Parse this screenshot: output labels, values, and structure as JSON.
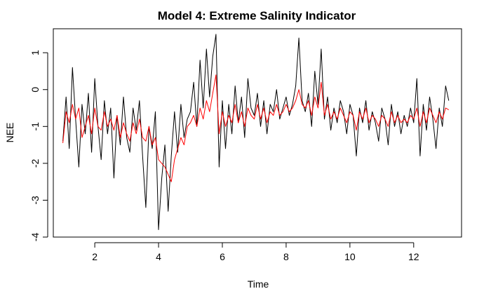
{
  "chart_data": {
    "type": "line",
    "title": "Model 4: Extreme Salinity Indicator",
    "xlabel": "Time",
    "ylabel": "NEE",
    "xlim": [
      0.7,
      13.5
    ],
    "ylim": [
      -4.0,
      1.65
    ],
    "xticks": [
      2,
      4,
      6,
      8,
      10,
      12
    ],
    "yticks": [
      -4,
      -3,
      -2,
      -1,
      0,
      1
    ],
    "grid": false,
    "legend": "none",
    "series": [
      {
        "color": "#000000",
        "x": [
          1.0,
          1.1,
          1.2,
          1.3,
          1.4,
          1.5,
          1.6,
          1.7,
          1.8,
          1.9,
          2.0,
          2.1,
          2.2,
          2.3,
          2.4,
          2.5,
          2.6,
          2.7,
          2.8,
          2.9,
          3.0,
          3.1,
          3.2,
          3.3,
          3.4,
          3.5,
          3.6,
          3.7,
          3.8,
          3.9,
          4.0,
          4.1,
          4.2,
          4.3,
          4.4,
          4.5,
          4.6,
          4.7,
          4.8,
          4.9,
          5.0,
          5.1,
          5.2,
          5.3,
          5.4,
          5.5,
          5.6,
          5.7,
          5.8,
          5.9,
          6.0,
          6.1,
          6.2,
          6.3,
          6.4,
          6.5,
          6.6,
          6.7,
          6.8,
          6.9,
          7.0,
          7.1,
          7.2,
          7.3,
          7.4,
          7.5,
          7.6,
          7.7,
          7.8,
          7.9,
          8.0,
          8.1,
          8.2,
          8.3,
          8.4,
          8.5,
          8.6,
          8.7,
          8.8,
          8.9,
          9.0,
          9.1,
          9.2,
          9.3,
          9.4,
          9.5,
          9.6,
          9.7,
          9.8,
          9.9,
          10.0,
          10.1,
          10.2,
          10.3,
          10.4,
          10.5,
          10.6,
          10.7,
          10.8,
          10.9,
          11.0,
          11.1,
          11.2,
          11.3,
          11.4,
          11.5,
          11.6,
          11.7,
          11.8,
          11.9,
          12.0,
          12.1,
          12.2,
          12.3,
          12.4,
          12.5,
          12.6,
          12.7,
          12.8,
          12.9,
          13.0,
          13.1
        ],
        "values": [
          -1.4,
          -0.2,
          -1.6,
          0.6,
          -0.8,
          -2.1,
          -0.4,
          -1.2,
          -0.1,
          -1.7,
          0.3,
          -1.0,
          -1.9,
          -0.3,
          -1.2,
          -0.5,
          -2.4,
          -0.7,
          -1.5,
          -0.2,
          -1.3,
          -1.7,
          -0.5,
          -1.1,
          -0.3,
          -1.8,
          -3.2,
          -1.0,
          -1.6,
          -0.6,
          -3.8,
          -2.4,
          -1.5,
          -3.3,
          -1.8,
          -0.6,
          -1.7,
          -0.4,
          -1.3,
          -0.8,
          -0.6,
          0.2,
          -1.0,
          0.8,
          -0.5,
          1.1,
          -0.2,
          0.9,
          1.5,
          -2.1,
          -0.3,
          -1.6,
          -0.4,
          -1.2,
          0.1,
          -0.9,
          -0.2,
          -1.3,
          0.3,
          -0.5,
          -0.7,
          -0.1,
          -1.0,
          -0.3,
          -1.2,
          -0.4,
          -0.6,
          0.0,
          -0.8,
          -0.5,
          -0.2,
          -0.7,
          -0.4,
          0.1,
          1.4,
          -0.3,
          -0.6,
          -0.1,
          -1.0,
          0.5,
          -0.4,
          1.1,
          -0.8,
          -0.2,
          -1.1,
          -0.5,
          -0.9,
          -0.3,
          -0.6,
          -1.2,
          -0.4,
          -0.7,
          -1.8,
          -0.5,
          -0.9,
          -0.3,
          -1.1,
          -0.6,
          -0.9,
          -1.4,
          -0.5,
          -0.8,
          -1.5,
          -0.4,
          -1.0,
          -0.6,
          -1.2,
          -0.7,
          -1.0,
          -0.5,
          -0.9,
          0.3,
          -1.8,
          -0.4,
          -1.1,
          -0.2,
          -0.8,
          -1.6,
          -0.5,
          -1.0,
          0.1,
          -0.3
        ]
      },
      {
        "color": "#ff0000",
        "x": [
          1.0,
          1.1,
          1.2,
          1.3,
          1.4,
          1.5,
          1.6,
          1.7,
          1.8,
          1.9,
          2.0,
          2.1,
          2.2,
          2.3,
          2.4,
          2.5,
          2.6,
          2.7,
          2.8,
          2.9,
          3.0,
          3.1,
          3.2,
          3.3,
          3.4,
          3.5,
          3.6,
          3.7,
          3.8,
          3.9,
          4.0,
          4.1,
          4.2,
          4.3,
          4.4,
          4.5,
          4.6,
          4.7,
          4.8,
          4.9,
          5.0,
          5.1,
          5.2,
          5.3,
          5.4,
          5.5,
          5.6,
          5.7,
          5.8,
          5.9,
          6.0,
          6.1,
          6.2,
          6.3,
          6.4,
          6.5,
          6.6,
          6.7,
          6.8,
          6.9,
          7.0,
          7.1,
          7.2,
          7.3,
          7.4,
          7.5,
          7.6,
          7.7,
          7.8,
          7.9,
          8.0,
          8.1,
          8.2,
          8.3,
          8.4,
          8.5,
          8.6,
          8.7,
          8.8,
          8.9,
          9.0,
          9.1,
          9.2,
          9.3,
          9.4,
          9.5,
          9.6,
          9.7,
          9.8,
          9.9,
          10.0,
          10.1,
          10.2,
          10.3,
          10.4,
          10.5,
          10.6,
          10.7,
          10.8,
          10.9,
          11.0,
          11.1,
          11.2,
          11.3,
          11.4,
          11.5,
          11.6,
          11.7,
          11.8,
          11.9,
          12.0,
          12.1,
          12.2,
          12.3,
          12.4,
          12.5,
          12.6,
          12.7,
          12.8,
          12.9,
          13.0,
          13.1
        ],
        "values": [
          -1.45,
          -0.6,
          -0.9,
          -0.4,
          -0.8,
          -0.5,
          -1.3,
          -1.0,
          -0.7,
          -1.2,
          -0.5,
          -1.0,
          -1.1,
          -0.6,
          -1.0,
          -0.8,
          -1.1,
          -0.7,
          -1.3,
          -0.9,
          -1.2,
          -1.4,
          -0.9,
          -1.2,
          -0.8,
          -1.3,
          -1.4,
          -1.0,
          -1.5,
          -1.3,
          -1.9,
          -2.0,
          -2.1,
          -2.3,
          -2.5,
          -1.9,
          -1.6,
          -1.3,
          -1.5,
          -1.0,
          -0.9,
          -0.7,
          -1.0,
          -0.5,
          -0.8,
          -0.3,
          -0.6,
          -0.1,
          0.4,
          -1.2,
          -0.6,
          -1.0,
          -0.7,
          -0.9,
          -0.4,
          -0.9,
          -0.6,
          -1.0,
          -0.5,
          -0.7,
          -0.8,
          -0.4,
          -0.8,
          -0.5,
          -0.9,
          -0.6,
          -0.7,
          -0.4,
          -0.7,
          -0.6,
          -0.4,
          -0.6,
          -0.5,
          -0.3,
          0.0,
          -0.4,
          -0.5,
          -0.3,
          -0.7,
          -0.2,
          -0.5,
          0.2,
          -0.7,
          -0.4,
          -0.8,
          -0.6,
          -0.8,
          -0.5,
          -0.7,
          -0.9,
          -0.6,
          -0.7,
          -1.1,
          -0.6,
          -0.8,
          -0.5,
          -0.9,
          -0.7,
          -0.8,
          -1.0,
          -0.7,
          -0.8,
          -1.0,
          -0.6,
          -0.9,
          -0.7,
          -0.9,
          -0.8,
          -0.9,
          -0.7,
          -0.8,
          -0.5,
          -1.0,
          -0.6,
          -0.9,
          -0.5,
          -0.7,
          -0.9,
          -0.6,
          -0.8,
          -0.5,
          -0.55
        ]
      }
    ]
  }
}
